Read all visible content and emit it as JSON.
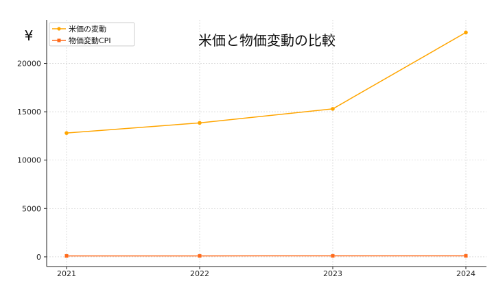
{
  "chart_data": {
    "type": "line",
    "title": "米価と物価変動の比較",
    "xlabel": "",
    "ylabel": "¥",
    "categories": [
      "2021",
      "2022",
      "2023",
      "2024"
    ],
    "ylim": [
      -1000,
      24500
    ],
    "yticks": [
      0,
      5000,
      10000,
      15000,
      20000
    ],
    "grid": true,
    "legend_position": "top-left",
    "series": [
      {
        "name": "米価の変動",
        "values": [
          12800,
          13850,
          15300,
          23200
        ],
        "color": "#FFA500",
        "marker": "circle"
      },
      {
        "name": "物価変動CPI",
        "values": [
          100,
          102,
          105,
          107
        ],
        "color": "#FF6A1A",
        "marker": "square"
      }
    ]
  }
}
